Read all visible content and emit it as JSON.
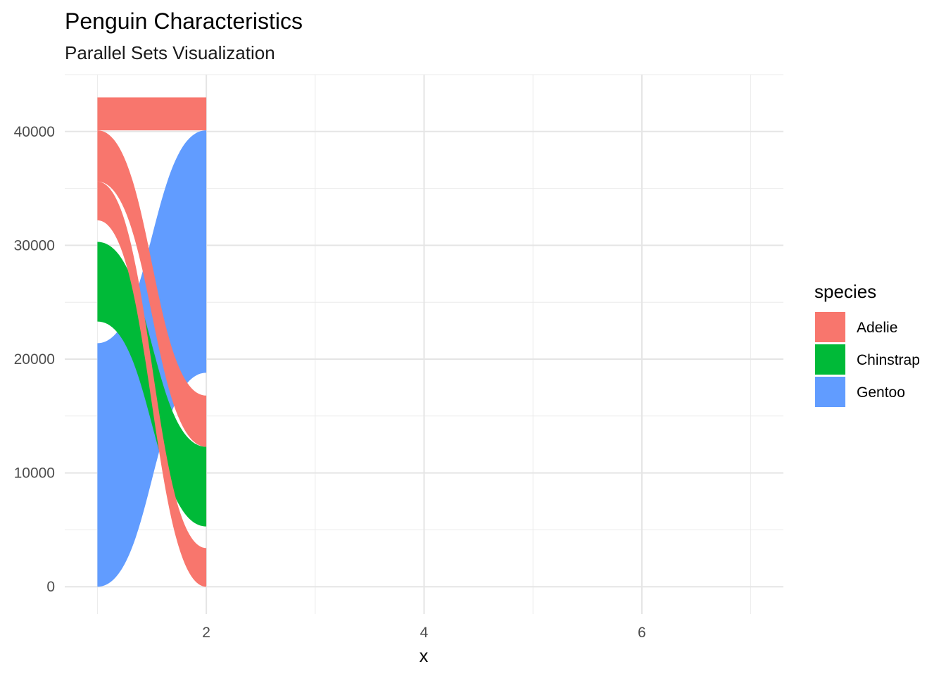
{
  "chart_data": {
    "type": "parallel_sets",
    "title": "Penguin Characteristics",
    "subtitle": "Parallel Sets Visualization",
    "xlabel": "x",
    "ylabel": "",
    "xlim": [
      0.7,
      7.3
    ],
    "ylim": [
      -2400,
      45000
    ],
    "x_ticks": [
      2,
      4,
      6
    ],
    "y_ticks": [
      0,
      10000,
      20000,
      30000,
      40000
    ],
    "grid": true,
    "legend": {
      "title": "species",
      "position": "right",
      "entries": [
        {
          "label": "Adelie",
          "color": "#F8766D"
        },
        {
          "label": "Chinstrap",
          "color": "#00BA38"
        },
        {
          "label": "Gentoo",
          "color": "#619CFF"
        }
      ]
    },
    "x_axes": [
      1,
      2
    ],
    "ribbons": [
      {
        "species": "Gentoo",
        "from": [
          0,
          21400
        ],
        "to": [
          18800,
          40100
        ]
      },
      {
        "species": "Chinstrap",
        "from": [
          23300,
          30300
        ],
        "to": [
          5300,
          12300
        ]
      },
      {
        "species": "Adelie",
        "from": [
          32200,
          35600
        ],
        "to": [
          0,
          3400
        ]
      },
      {
        "species": "Adelie",
        "from": [
          35600,
          40100
        ],
        "to": [
          12300,
          16800
        ]
      },
      {
        "species": "Adelie",
        "from": [
          40100,
          43000
        ],
        "to": [
          40100,
          43000
        ]
      }
    ]
  }
}
